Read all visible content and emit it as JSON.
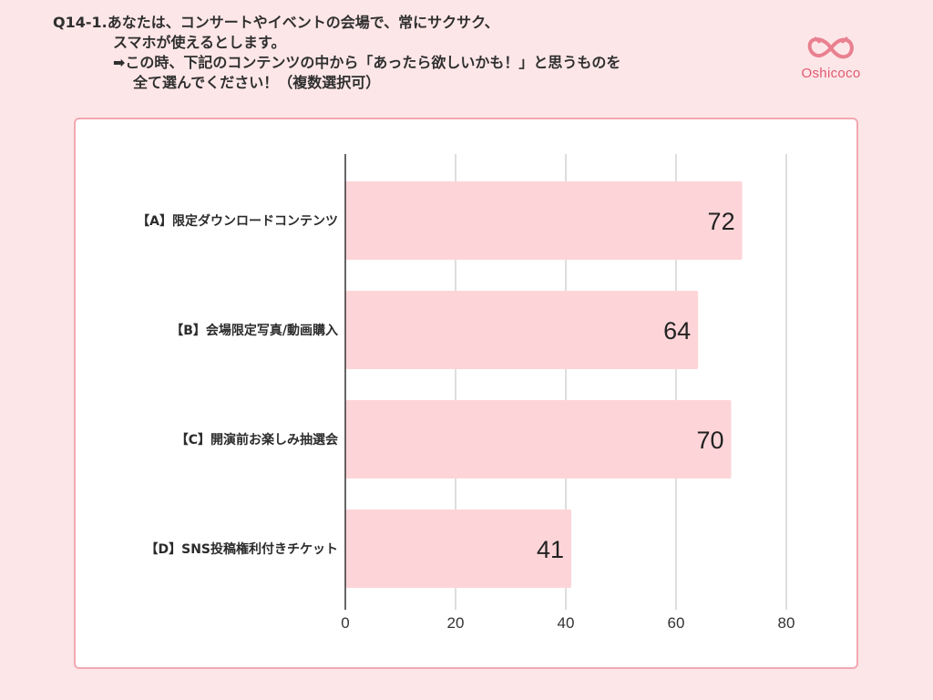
{
  "question": {
    "line1": "Q14-1.あなたは、コンサートやイベントの会場で、常にサクサク、",
    "line2": "スマホが使えるとします。",
    "line3": "➡この時、下記のコンテンツの中から「あったら欲しいかも！」と思うものを",
    "line4": "全て選んでください！（複数選択可）"
  },
  "logo": {
    "text": "Oshicoco",
    "color": "#e05a6f"
  },
  "colors": {
    "background": "#fde6e8",
    "bar": "#fdd5d8",
    "panel_border": "#f2a9b2",
    "grid": "#bdbdbd",
    "axis": "#333333"
  },
  "chart_data": {
    "type": "bar",
    "orientation": "horizontal",
    "categories": [
      "【A】限定ダウンロードコンテンツ",
      "【B】会場限定写真/動画購入",
      "【C】開演前お楽しみ抽選会",
      "【D】SNS投稿権利付きチケット"
    ],
    "values": [
      72,
      64,
      70,
      41
    ],
    "xlim": [
      0,
      80
    ],
    "xticks": [
      0,
      20,
      40,
      60,
      80
    ],
    "grid": true,
    "legend": false
  }
}
